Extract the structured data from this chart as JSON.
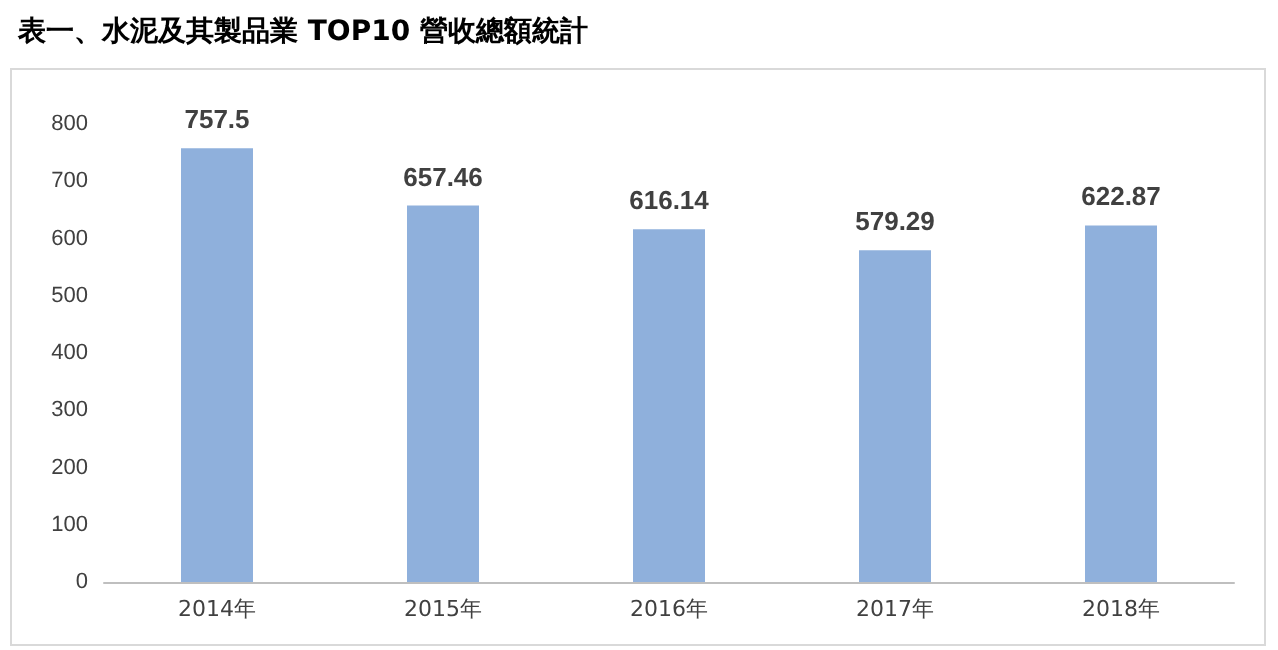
{
  "chart_data": {
    "type": "bar",
    "title": "表一、水泥及其製品業 TOP10 營收總額統計",
    "categories": [
      "2014年",
      "2015年",
      "2016年",
      "2017年",
      "2018年"
    ],
    "values": [
      757.5,
      657.46,
      616.14,
      579.29,
      622.87
    ],
    "color": "#8fb0dc",
    "ylim": [
      0,
      800
    ],
    "yticks": [
      0,
      100,
      200,
      300,
      400,
      500,
      600,
      700,
      800
    ],
    "grid": false,
    "data_labels": true
  }
}
